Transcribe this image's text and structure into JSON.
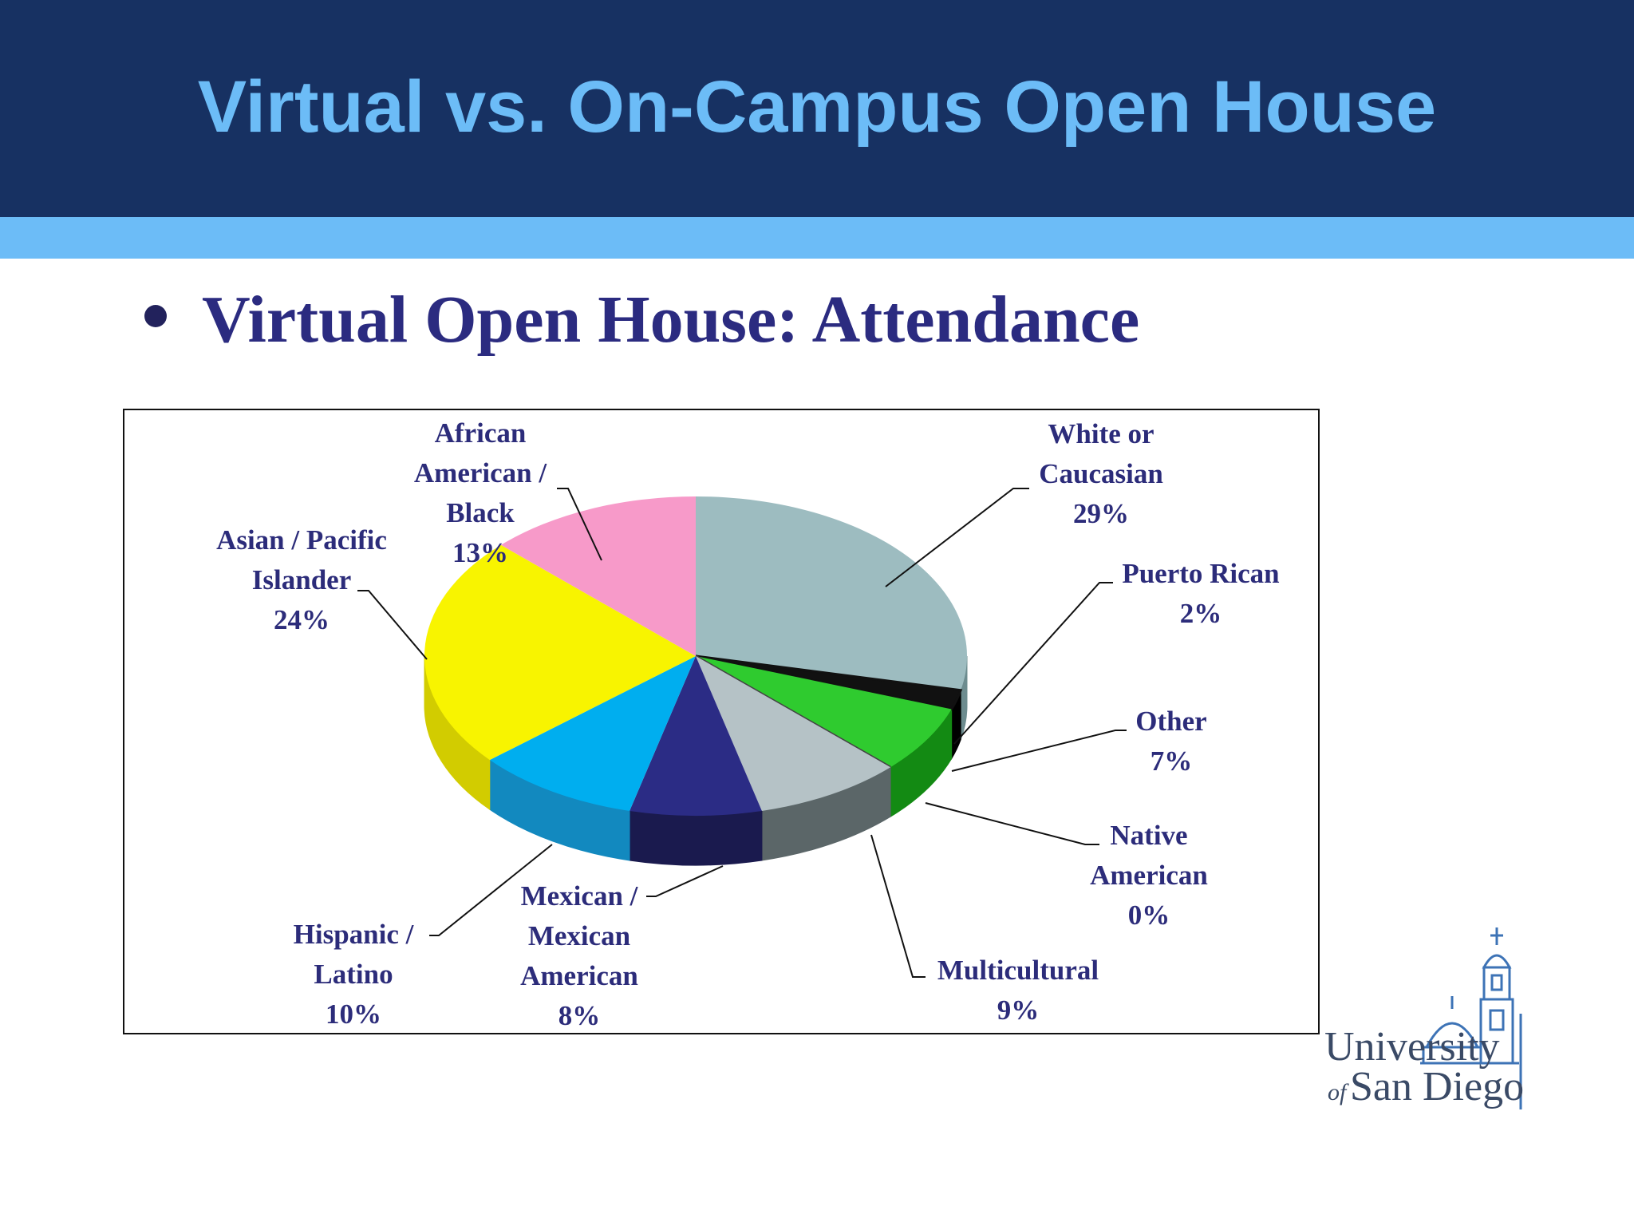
{
  "slide": {
    "title": "Virtual vs. On-Campus Open House",
    "bullet": "Virtual Open House: Attendance",
    "logo_text_line1": "University",
    "logo_text_line2_prefix": "of",
    "logo_text_line2": "San Diego"
  },
  "colors": {
    "header": "#173162",
    "accent": "#6cbcf7",
    "title": "#6cbcf7",
    "bullet": "#2b2b80",
    "label": "#2c2c7a"
  },
  "chart_data": {
    "type": "pie",
    "style": "3d",
    "title": "",
    "slices": [
      {
        "label": [
          "White or",
          "Caucasian",
          "29%"
        ],
        "value": 29,
        "color": "#9dbcc0",
        "side": "#6d8c8f"
      },
      {
        "label": [
          "Puerto Rican",
          "2%"
        ],
        "value": 2,
        "color": "#111111",
        "side": "#000000"
      },
      {
        "label": [
          "Other",
          "7%"
        ],
        "value": 7,
        "color": "#2fcb2f",
        "side": "#138a13"
      },
      {
        "label": [
          "Native",
          "American",
          "0%"
        ],
        "value": 0,
        "color": "#444444",
        "side": "#222222"
      },
      {
        "label": [
          "Multicultural",
          "9%"
        ],
        "value": 9,
        "color": "#b5c2c6",
        "side": "#5b6668"
      },
      {
        "label": [
          "Mexican /",
          "Mexican",
          "American",
          "8%"
        ],
        "value": 8,
        "color": "#2b2c85",
        "side": "#1a1a4e"
      },
      {
        "label": [
          "Hispanic /",
          "Latino",
          "10%"
        ],
        "value": 10,
        "color": "#00aeef",
        "side": "#1289bf"
      },
      {
        "label": [
          "Asian / Pacific",
          "Islander",
          "24%"
        ],
        "value": 24,
        "color": "#f8f400",
        "side": "#d2cc00"
      },
      {
        "label": [
          "African",
          "American /",
          "Black",
          "13%"
        ],
        "value": 13,
        "color": "#f79ac9",
        "side": "#c9709f"
      }
    ]
  }
}
